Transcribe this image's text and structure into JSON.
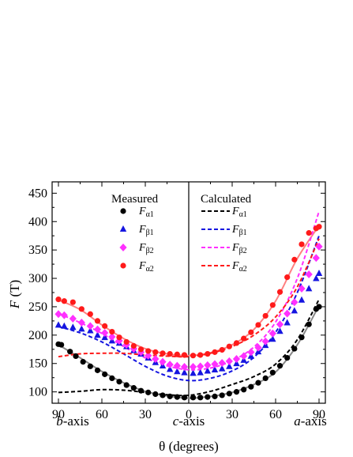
{
  "chart_data": {
    "type": "scatter",
    "xlabel": "θ (degrees)",
    "ylabel": "F (T)",
    "ylim": [
      80,
      470
    ],
    "yticks": [
      100,
      150,
      200,
      250,
      300,
      350,
      400,
      450
    ],
    "xtick_labels": [
      "90",
      "60",
      "30",
      "0",
      "30",
      "60",
      "90"
    ],
    "axis_names": {
      "left": "b-axis",
      "center": "c-axis",
      "right": "a-axis"
    },
    "legend_titles": {
      "measured": "Measured",
      "calculated": "Calculated"
    },
    "grid": false,
    "legend_placement": "top-center",
    "x_note": "left half: angle from c-axis toward b-axis (b-axis at left end); right half: angle from c-axis toward a-axis",
    "series": [
      {
        "id": "Fa1",
        "label": "F",
        "sub": "α1",
        "color": "#000000",
        "marker": "circle",
        "left": [
          [
            90,
            184
          ],
          [
            88,
            183
          ],
          [
            82,
            171
          ],
          [
            78,
            163
          ],
          [
            73,
            153
          ],
          [
            68,
            145
          ],
          [
            63,
            138
          ],
          [
            58,
            131
          ],
          [
            53,
            124
          ],
          [
            48,
            118
          ],
          [
            43,
            112
          ],
          [
            38,
            107
          ],
          [
            33,
            102
          ],
          [
            28,
            99
          ],
          [
            23,
            96
          ],
          [
            18,
            94
          ],
          [
            13,
            92
          ],
          [
            8,
            91
          ],
          [
            3,
            90
          ]
        ],
        "right": [
          [
            3,
            90
          ],
          [
            8,
            90
          ],
          [
            13,
            91
          ],
          [
            18,
            92
          ],
          [
            23,
            94
          ],
          [
            28,
            97
          ],
          [
            33,
            100
          ],
          [
            38,
            104
          ],
          [
            43,
            109
          ],
          [
            48,
            116
          ],
          [
            53,
            124
          ],
          [
            58,
            134
          ],
          [
            63,
            146
          ],
          [
            68,
            160
          ],
          [
            73,
            176
          ],
          [
            78,
            196
          ],
          [
            83,
            219
          ],
          [
            88,
            246
          ],
          [
            90,
            250
          ]
        ],
        "fit": [
          [
            -90,
            183
          ],
          [
            -75,
            160
          ],
          [
            -60,
            136
          ],
          [
            -45,
            116
          ],
          [
            -30,
            101
          ],
          [
            -15,
            93
          ],
          [
            0,
            89
          ],
          [
            15,
            92
          ],
          [
            30,
            99
          ],
          [
            45,
            113
          ],
          [
            60,
            135
          ],
          [
            75,
            183
          ],
          [
            90,
            252
          ]
        ],
        "calc": [
          [
            -90,
            99
          ],
          [
            -75,
            101
          ],
          [
            -60,
            104
          ],
          [
            -45,
            103
          ],
          [
            -30,
            99
          ],
          [
            -15,
            95
          ],
          [
            0,
            94
          ],
          [
            15,
            101
          ],
          [
            30,
            113
          ],
          [
            45,
            127
          ],
          [
            60,
            149
          ],
          [
            75,
            192
          ],
          [
            90,
            263
          ]
        ]
      },
      {
        "id": "Fb1",
        "label": "F",
        "sub": "β1",
        "color": "#1515e0",
        "marker": "triangle",
        "left": [
          [
            90,
            218
          ],
          [
            86,
            216
          ],
          [
            80,
            214
          ],
          [
            74,
            211
          ],
          [
            68,
            208
          ],
          [
            63,
            200
          ],
          [
            58,
            196
          ],
          [
            53,
            190
          ],
          [
            48,
            186
          ],
          [
            43,
            180
          ],
          [
            38,
            173
          ],
          [
            33,
            167
          ],
          [
            28,
            160
          ],
          [
            23,
            152
          ],
          [
            18,
            146
          ],
          [
            13,
            140
          ],
          [
            8,
            136
          ],
          [
            3,
            134
          ]
        ],
        "right": [
          [
            3,
            133
          ],
          [
            8,
            134
          ],
          [
            13,
            137
          ],
          [
            18,
            139
          ],
          [
            23,
            141
          ],
          [
            28,
            145
          ],
          [
            33,
            150
          ],
          [
            38,
            156
          ],
          [
            43,
            163
          ],
          [
            48,
            171
          ],
          [
            53,
            182
          ],
          [
            58,
            193
          ],
          [
            63,
            207
          ],
          [
            68,
            222
          ],
          [
            73,
            243
          ],
          [
            78,
            262
          ],
          [
            83,
            282
          ],
          [
            88,
            300
          ],
          [
            90,
            309
          ]
        ],
        "calc": [
          [
            -90,
            215
          ],
          [
            -75,
            204
          ],
          [
            -60,
            188
          ],
          [
            -45,
            167
          ],
          [
            -30,
            145
          ],
          [
            -15,
            128
          ],
          [
            0,
            120
          ],
          [
            15,
            124
          ],
          [
            30,
            137
          ],
          [
            45,
            161
          ],
          [
            60,
            205
          ],
          [
            75,
            275
          ],
          [
            90,
            375
          ]
        ]
      },
      {
        "id": "Fb2",
        "label": "F",
        "sub": "β2",
        "color": "#ff30ff",
        "marker": "diamond",
        "left": [
          [
            90,
            237
          ],
          [
            86,
            235
          ],
          [
            80,
            229
          ],
          [
            74,
            222
          ],
          [
            68,
            216
          ],
          [
            63,
            210
          ],
          [
            58,
            204
          ],
          [
            53,
            197
          ],
          [
            48,
            190
          ],
          [
            43,
            183
          ],
          [
            38,
            176
          ],
          [
            33,
            170
          ],
          [
            28,
            164
          ],
          [
            23,
            158
          ],
          [
            18,
            153
          ],
          [
            13,
            148
          ],
          [
            8,
            146
          ],
          [
            3,
            144
          ]
        ],
        "right": [
          [
            3,
            144
          ],
          [
            8,
            145
          ],
          [
            13,
            147
          ],
          [
            18,
            149
          ],
          [
            23,
            151
          ],
          [
            28,
            154
          ],
          [
            33,
            158
          ],
          [
            38,
            163
          ],
          [
            43,
            170
          ],
          [
            48,
            178
          ],
          [
            53,
            189
          ],
          [
            58,
            203
          ],
          [
            63,
            219
          ],
          [
            68,
            238
          ],
          [
            73,
            258
          ],
          [
            78,
            282
          ],
          [
            83,
            307
          ],
          [
            88,
            336
          ],
          [
            90,
            356
          ]
        ],
        "calc": [
          [
            -90,
            238
          ],
          [
            -75,
            222
          ],
          [
            -60,
            203
          ],
          [
            -45,
            180
          ],
          [
            -30,
            160
          ],
          [
            -15,
            146
          ],
          [
            0,
            139
          ],
          [
            15,
            142
          ],
          [
            30,
            155
          ],
          [
            45,
            179
          ],
          [
            60,
            223
          ],
          [
            75,
            300
          ],
          [
            90,
            418
          ]
        ]
      },
      {
        "id": "Fa2",
        "label": "F",
        "sub": "α2",
        "color": "#ff1a1a",
        "marker": "circle",
        "left": [
          [
            90,
            263
          ],
          [
            86,
            260
          ],
          [
            80,
            258
          ],
          [
            74,
            246
          ],
          [
            68,
            237
          ],
          [
            63,
            225
          ],
          [
            58,
            216
          ],
          [
            53,
            206
          ],
          [
            48,
            196
          ],
          [
            43,
            188
          ],
          [
            38,
            181
          ],
          [
            33,
            175
          ],
          [
            28,
            172
          ],
          [
            23,
            170
          ],
          [
            18,
            168
          ],
          [
            13,
            167
          ],
          [
            8,
            166
          ],
          [
            3,
            165
          ]
        ],
        "right": [
          [
            3,
            164
          ],
          [
            8,
            165
          ],
          [
            13,
            167
          ],
          [
            18,
            170
          ],
          [
            23,
            174
          ],
          [
            28,
            180
          ],
          [
            33,
            186
          ],
          [
            38,
            194
          ],
          [
            43,
            205
          ],
          [
            48,
            218
          ],
          [
            53,
            234
          ],
          [
            58,
            253
          ],
          [
            63,
            276
          ],
          [
            68,
            302
          ],
          [
            73,
            333
          ],
          [
            78,
            360
          ],
          [
            83,
            380
          ],
          [
            88,
            388
          ],
          [
            90,
            391
          ]
        ],
        "fit": [
          [
            -90,
            262
          ],
          [
            -75,
            245
          ],
          [
            -60,
            218
          ],
          [
            -45,
            194
          ],
          [
            -30,
            176
          ],
          [
            -15,
            167
          ],
          [
            0,
            164
          ],
          [
            15,
            169
          ],
          [
            30,
            183
          ],
          [
            45,
            210
          ],
          [
            60,
            260
          ],
          [
            75,
            335
          ],
          [
            90,
            393
          ]
        ],
        "calc": [
          [
            -90,
            162
          ],
          [
            -75,
            167
          ],
          [
            -60,
            168
          ],
          [
            -45,
            168
          ],
          [
            -30,
            165
          ],
          [
            -15,
            163
          ],
          [
            0,
            162
          ],
          [
            15,
            168
          ],
          [
            30,
            180
          ],
          [
            45,
            200
          ],
          [
            60,
            232
          ],
          [
            75,
            285
          ],
          [
            90,
            370
          ]
        ]
      }
    ]
  }
}
